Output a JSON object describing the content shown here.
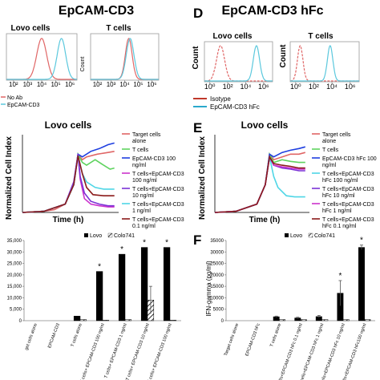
{
  "panel_letters": {
    "D": "D",
    "E": "E",
    "F": "F"
  },
  "titles": {
    "left": "EpCAM-CD3",
    "right": "EpCAM-CD3 hFc",
    "left_middle": "Lovo cells",
    "right_middle": "Lovo cells"
  },
  "flow_labels": {
    "left_lovo": "Lovo cells",
    "left_t": "T cells",
    "right_lovo": "Lovo cells",
    "right_t": "T cells",
    "count": "Count"
  },
  "flow_legend": {
    "left": [
      "No Ab",
      "EpCAM-CD3"
    ],
    "right": [
      "Isotype",
      "EpCAM-CD3 hFc"
    ]
  },
  "colors": {
    "red": "#e06666",
    "cyan": "#5bc8dd",
    "blue": "#1f3fe0",
    "green": "#5fd35f",
    "purple": "#7b32d6",
    "magenta": "#cc33cc",
    "cyan2": "#4fd6e6",
    "maroon": "#8b1a1a",
    "black": "#000000",
    "gray": "#888888"
  },
  "axis_labels": {
    "norm_ci": "Normalized Cell Index",
    "time_h": "Time (h)",
    "ifn": "IFN-gamma (pg/ml)"
  },
  "chart_data": [
    {
      "type": "line",
      "panel": "flow-left-lovo",
      "title": "Lovo cells",
      "x_scale": "log",
      "xticks": [
        "10²",
        "10³",
        "10⁴",
        "10⁵",
        "10⁶"
      ],
      "series": [
        {
          "name": "No Ab",
          "peak_log10": 4.0,
          "width": 0.35,
          "color": "#e06666"
        },
        {
          "name": "EpCAM-CD3",
          "peak_log10": 5.4,
          "width": 0.3,
          "color": "#5bc8dd"
        }
      ]
    },
    {
      "type": "line",
      "panel": "flow-left-t",
      "title": "T cells",
      "ylabel": "Count",
      "x_scale": "log",
      "xticks": [
        "10²",
        "10³",
        "10⁴",
        "10⁵",
        "10⁶"
      ],
      "series": [
        {
          "name": "No Ab",
          "peak_log10": 4.3,
          "width": 0.25,
          "color": "#e06666"
        },
        {
          "name": "EpCAM-CD3",
          "peak_log10": 4.4,
          "width": 0.28,
          "color": "#5bc8dd"
        }
      ]
    },
    {
      "type": "line",
      "panel": "flow-right-lovo",
      "title": "Lovo cells",
      "ylabel": "Count",
      "x_scale": "log",
      "xticks": [
        "10⁰",
        "10²",
        "10⁴",
        "10⁶"
      ],
      "series": [
        {
          "name": "Isotype",
          "peak_log10": 1.2,
          "width": 0.45,
          "color": "#e06666"
        },
        {
          "name": "EpCAM-CD3 hFc",
          "peak_log10": 5.2,
          "width": 0.35,
          "color": "#5bc8dd"
        }
      ]
    },
    {
      "type": "line",
      "panel": "flow-right-t",
      "title": "T cells",
      "x_scale": "log",
      "xticks": [
        "10⁰",
        "10²",
        "10⁴",
        "10⁶"
      ],
      "series": [
        {
          "name": "Isotype",
          "peak_log10": 0.5,
          "width": 0.3,
          "color": "#e06666"
        },
        {
          "name": "EpCAM-CD3 hFc",
          "peak_log10": 3.8,
          "width": 0.3,
          "color": "#5bc8dd"
        }
      ]
    },
    {
      "type": "line",
      "panel": "kinetics-left",
      "title": "Lovo cells",
      "xlabel": "Time (h)",
      "ylabel": "Normalized Cell Index",
      "xlim": [
        0,
        45
      ],
      "ylim": [
        0,
        1.4
      ],
      "grid": false,
      "legend": "right",
      "series": [
        {
          "name": "Target cells alone",
          "color": "#e06666",
          "points": [
            [
              0,
              0
            ],
            [
              5,
              0.01
            ],
            [
              10,
              0.02
            ],
            [
              15,
              0.05
            ],
            [
              20,
              0.15
            ],
            [
              24,
              0.5
            ],
            [
              26,
              1.05
            ],
            [
              28,
              0.95
            ],
            [
              30,
              1.0
            ],
            [
              35,
              1.05
            ],
            [
              40,
              1.08
            ],
            [
              43,
              1.1
            ]
          ]
        },
        {
          "name": "T cells",
          "color": "#5fd35f",
          "points": [
            [
              0,
              0
            ],
            [
              10,
              0.02
            ],
            [
              20,
              0.15
            ],
            [
              24,
              0.5
            ],
            [
              26,
              1.05
            ],
            [
              28,
              0.9
            ],
            [
              30,
              0.85
            ],
            [
              34,
              0.95
            ],
            [
              38,
              0.85
            ],
            [
              41,
              0.78
            ],
            [
              43,
              0.8
            ]
          ]
        },
        {
          "name": "EpCAM-CD3 100 ng/ml",
          "color": "#1f3fe0",
          "points": [
            [
              0,
              0
            ],
            [
              10,
              0.02
            ],
            [
              20,
              0.15
            ],
            [
              24,
              0.5
            ],
            [
              26,
              1.05
            ],
            [
              28,
              1.0
            ],
            [
              32,
              1.1
            ],
            [
              36,
              1.15
            ],
            [
              40,
              1.22
            ],
            [
              43,
              1.25
            ]
          ]
        },
        {
          "name": "T cells+EpCAM-CD3 100 ng/ml",
          "color": "#cc33cc",
          "points": [
            [
              0,
              0
            ],
            [
              10,
              0.02
            ],
            [
              20,
              0.15
            ],
            [
              24,
              0.55
            ],
            [
              26,
              1.05
            ],
            [
              27,
              0.6
            ],
            [
              29,
              0.25
            ],
            [
              32,
              0.15
            ],
            [
              36,
              0.12
            ],
            [
              40,
              0.1
            ],
            [
              43,
              0.1
            ]
          ]
        },
        {
          "name": "T cells+EpCAM-CD3 10 ng/ml",
          "color": "#7b32d6",
          "points": [
            [
              0,
              0
            ],
            [
              10,
              0.02
            ],
            [
              20,
              0.15
            ],
            [
              24,
              0.55
            ],
            [
              26,
              1.05
            ],
            [
              27,
              0.65
            ],
            [
              29,
              0.35
            ],
            [
              32,
              0.2
            ],
            [
              36,
              0.15
            ],
            [
              40,
              0.12
            ],
            [
              43,
              0.12
            ]
          ]
        },
        {
          "name": "T cells+EpCAM-CD3 1 ng/ml",
          "color": "#4fd6e6",
          "points": [
            [
              0,
              0
            ],
            [
              10,
              0.02
            ],
            [
              20,
              0.15
            ],
            [
              24,
              0.5
            ],
            [
              26,
              1.02
            ],
            [
              28,
              0.7
            ],
            [
              30,
              0.55
            ],
            [
              34,
              0.45
            ],
            [
              38,
              0.42
            ],
            [
              43,
              0.42
            ]
          ]
        },
        {
          "name": "T cells+EpCAM-CD3 0.1 ng/ml",
          "color": "#8b1a1a",
          "points": [
            [
              0,
              0
            ],
            [
              10,
              0.02
            ],
            [
              20,
              0.15
            ],
            [
              24,
              0.5
            ],
            [
              26,
              1.02
            ],
            [
              28,
              0.7
            ],
            [
              30,
              0.45
            ],
            [
              33,
              0.32
            ],
            [
              38,
              0.3
            ],
            [
              43,
              0.3
            ]
          ]
        }
      ]
    },
    {
      "type": "line",
      "panel": "kinetics-right",
      "title": "Lovo cells",
      "xlabel": "Time (h)",
      "ylabel": "Normalized Cell Index",
      "xlim": [
        0,
        45
      ],
      "ylim": [
        0,
        1.4
      ],
      "grid": false,
      "legend": "right",
      "series": [
        {
          "name": "Target cells alone",
          "color": "#e06666",
          "points": [
            [
              0,
              0
            ],
            [
              10,
              0.02
            ],
            [
              20,
              0.15
            ],
            [
              24,
              0.5
            ],
            [
              26,
              1.05
            ],
            [
              28,
              0.95
            ],
            [
              32,
              1.0
            ],
            [
              36,
              1.05
            ],
            [
              40,
              1.05
            ],
            [
              43,
              1.08
            ]
          ]
        },
        {
          "name": "T cells",
          "color": "#5fd35f",
          "points": [
            [
              0,
              0
            ],
            [
              10,
              0.02
            ],
            [
              20,
              0.15
            ],
            [
              24,
              0.5
            ],
            [
              26,
              1.05
            ],
            [
              28,
              0.9
            ],
            [
              32,
              0.95
            ],
            [
              36,
              0.92
            ],
            [
              40,
              0.9
            ],
            [
              43,
              0.9
            ]
          ]
        },
        {
          "name": "EpCAM-CD3 hFc 100 ng/ml",
          "color": "#1f3fe0",
          "points": [
            [
              0,
              0
            ],
            [
              10,
              0.02
            ],
            [
              20,
              0.15
            ],
            [
              24,
              0.5
            ],
            [
              26,
              1.05
            ],
            [
              28,
              1.0
            ],
            [
              32,
              1.08
            ],
            [
              36,
              1.12
            ],
            [
              40,
              1.15
            ],
            [
              43,
              1.18
            ]
          ]
        },
        {
          "name": "T cells+EpCAM-CD3 hFc 100 ng/ml",
          "color": "#4fd6e6",
          "points": [
            [
              0,
              0
            ],
            [
              10,
              0.02
            ],
            [
              20,
              0.15
            ],
            [
              24,
              0.5
            ],
            [
              26,
              1.0
            ],
            [
              28,
              0.65
            ],
            [
              30,
              0.45
            ],
            [
              34,
              0.3
            ],
            [
              38,
              0.28
            ],
            [
              43,
              0.28
            ]
          ]
        },
        {
          "name": "T cells+EpCAM-CD3 hFc 10 ng/ml",
          "color": "#7b32d6",
          "points": [
            [
              0,
              0
            ],
            [
              10,
              0.02
            ],
            [
              20,
              0.15
            ],
            [
              24,
              0.5
            ],
            [
              26,
              1.0
            ],
            [
              28,
              0.85
            ],
            [
              32,
              0.8
            ],
            [
              36,
              0.78
            ],
            [
              40,
              0.75
            ],
            [
              43,
              0.75
            ]
          ]
        },
        {
          "name": "T cells+EpCAM-CD3 hFc 1 ng/ml",
          "color": "#cc33cc",
          "points": [
            [
              0,
              0
            ],
            [
              10,
              0.02
            ],
            [
              20,
              0.15
            ],
            [
              24,
              0.5
            ],
            [
              26,
              1.0
            ],
            [
              28,
              0.85
            ],
            [
              32,
              0.82
            ],
            [
              36,
              0.8
            ],
            [
              40,
              0.78
            ],
            [
              43,
              0.78
            ]
          ]
        },
        {
          "name": "T cells+EpCAM-CD3 hFc 0.1 ng/ml",
          "color": "#8b1a1a",
          "points": [
            [
              0,
              0
            ],
            [
              10,
              0.02
            ],
            [
              20,
              0.15
            ],
            [
              24,
              0.5
            ],
            [
              26,
              1.0
            ],
            [
              28,
              0.88
            ],
            [
              32,
              0.85
            ],
            [
              36,
              0.83
            ],
            [
              40,
              0.8
            ],
            [
              43,
              0.8
            ]
          ]
        }
      ]
    },
    {
      "type": "bar",
      "panel": "ifn-left",
      "ylim": [
        0,
        35000
      ],
      "yticks": [
        "35,000",
        "30,000",
        "25,000",
        "20,000",
        "15,000",
        "10,000",
        "5,000",
        "0"
      ],
      "legend": "top",
      "categories": [
        "get cells alone",
        "EPCAM-CD3",
        "T cells alone",
        "T cells+ EPCAM-CD3 100 ng/ml",
        "T cells+ EPCAM-CD3 1 ng/ml",
        "T cells+ EPCAM-CD3 10 ng/ml",
        "T cells+ EPCAM-CD3 100 ng/ml"
      ],
      "series": [
        {
          "name": "Lovo",
          "values": [
            0,
            0,
            2000,
            21500,
            29000,
            32000,
            32000
          ],
          "errors": [
            0,
            0,
            0,
            0,
            0,
            0,
            0
          ]
        },
        {
          "name": "Colo741",
          "values": [
            0,
            0,
            500,
            200,
            500,
            9000,
            200
          ],
          "errors": [
            0,
            0,
            0,
            0,
            0,
            6000,
            0
          ]
        }
      ],
      "significance": [
        "",
        "",
        "",
        "*",
        "*",
        "*",
        "*"
      ]
    },
    {
      "type": "bar",
      "panel": "ifn-right",
      "ylabel": "IFN-gamma (pg/ml)",
      "ylim": [
        0,
        35000
      ],
      "yticks": [
        "35000",
        "30000",
        "25000",
        "20000",
        "15000",
        "10000",
        "5000",
        "0"
      ],
      "legend": "top",
      "categories": [
        "Target cells alone",
        "EPCAM-CD3 hFc",
        "T cells alone",
        "T cells+EPCAM-CD3 hFc 0.1 ng/ml",
        "T cells+EPCAM-CD3 hFc 1 ng/ml",
        "T cells+EPCAM-CD3 hFc 10 ng/ml",
        "T cells+EPCAM-CD3 hFc100 ng/ml"
      ],
      "series": [
        {
          "name": "Lovo",
          "values": [
            0,
            0,
            1700,
            1200,
            1800,
            12000,
            32000
          ],
          "errors": [
            0,
            0,
            300,
            300,
            500,
            5500,
            1000
          ]
        },
        {
          "name": "Colo741",
          "values": [
            0,
            0,
            500,
            500,
            500,
            500,
            500
          ],
          "errors": [
            0,
            0,
            0,
            0,
            0,
            0,
            0
          ]
        }
      ],
      "significance": [
        "",
        "",
        "",
        "",
        "",
        "*",
        "*"
      ]
    }
  ]
}
